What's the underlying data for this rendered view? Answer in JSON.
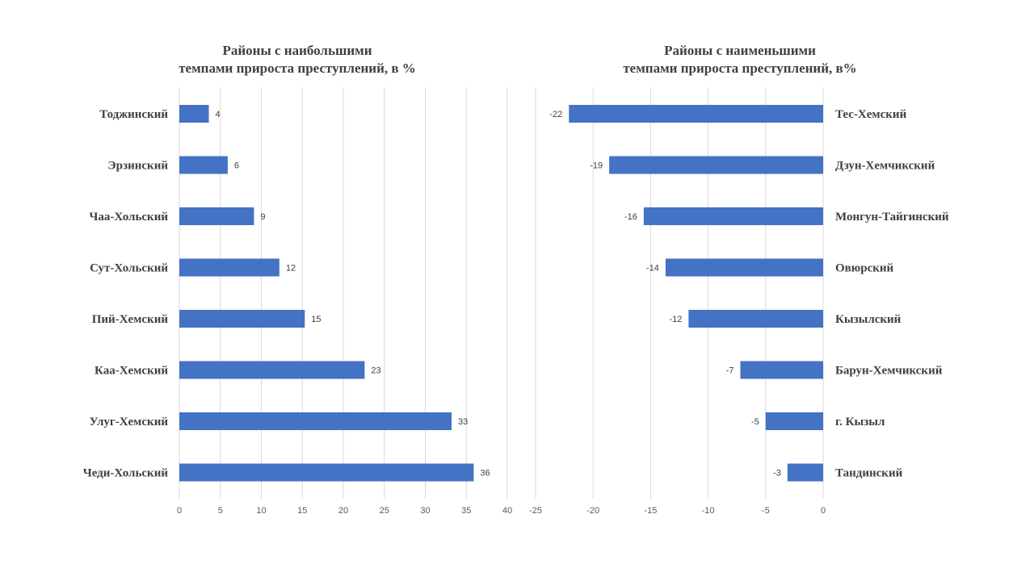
{
  "colors": {
    "bar": "#4472C4",
    "grid": "#d9d9d9",
    "text": "#404040"
  },
  "chart_data": [
    {
      "type": "bar",
      "orientation": "horizontal",
      "title": [
        "Районы с наибольшими",
        "темпами прироста преступлений, в %"
      ],
      "categories": [
        "Тоджинский",
        "Эрзинский",
        "Чаа-Хольский",
        "Сут-Хольский",
        "Пий-Хемский",
        "Каа-Хемский",
        "Улуг-Хемский",
        "Чеди-Хольский"
      ],
      "values": [
        3.6,
        5.9,
        9.1,
        12.2,
        15.3,
        22.6,
        33.2,
        35.9
      ],
      "data_labels": [
        "4",
        "6",
        "9",
        "12",
        "15",
        "23",
        "33",
        "36"
      ],
      "xlim": [
        0,
        40
      ],
      "ticks": [
        0,
        5,
        10,
        15,
        20,
        25,
        30,
        35,
        40
      ],
      "tick_labels": [
        "0",
        "5",
        "10",
        "15",
        "20",
        "25",
        "30",
        "35",
        "40"
      ],
      "grid": true,
      "category_labels_side": "left"
    },
    {
      "type": "bar",
      "orientation": "horizontal",
      "title": [
        "Районы с наименьшими",
        "темпами прироста преступлений, в%"
      ],
      "categories": [
        "Тес-Хемский",
        "Дзун-Хемчикский",
        "Монгун-Тайгинский",
        "Овюрский",
        "Кызылский",
        "Барун-Хемчикский",
        "г. Кызыл",
        "Тандинский"
      ],
      "values": [
        -22.1,
        -18.6,
        -15.6,
        -13.7,
        -11.7,
        -7.2,
        -5.0,
        -3.1
      ],
      "data_labels": [
        "-22",
        "-19",
        "-16",
        "-14",
        "-12",
        "-7",
        "-5",
        "-3"
      ],
      "xlim": [
        -25,
        0
      ],
      "ticks": [
        -25,
        -20,
        -15,
        -10,
        -5,
        0
      ],
      "tick_labels": [
        "-25",
        "-20",
        "-15",
        "-10",
        "-5",
        "0"
      ],
      "grid": true,
      "category_labels_side": "right"
    }
  ]
}
